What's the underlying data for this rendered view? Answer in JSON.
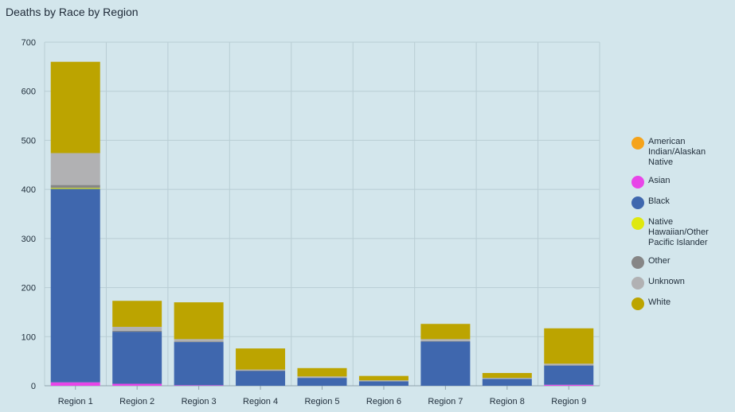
{
  "chart_data": {
    "type": "bar",
    "stacked": true,
    "title": "Deaths by Race by Region",
    "xlabel": "",
    "ylabel": "",
    "ylim": [
      0,
      700
    ],
    "yticks": [
      0,
      100,
      200,
      300,
      400,
      500,
      600,
      700
    ],
    "grid": true,
    "legend_position": "right",
    "categories": [
      "Region 1",
      "Region 2",
      "Region 3",
      "Region 4",
      "Region 5",
      "Region 6",
      "Region 7",
      "Region 8",
      "Region 9"
    ],
    "series": [
      {
        "name": "American Indian/Alaskan Native",
        "color": "#f5a31a",
        "values": [
          0,
          0,
          0,
          0,
          0,
          0,
          0,
          0,
          0
        ]
      },
      {
        "name": "Asian",
        "color": "#e845e8",
        "values": [
          7,
          4,
          1,
          0,
          0,
          0,
          0,
          0,
          2
        ]
      },
      {
        "name": "Black",
        "color": "#3f67ae",
        "values": [
          394,
          106,
          88,
          30,
          16,
          9,
          90,
          14,
          39
        ]
      },
      {
        "name": "Native Hawaiian/Other Pacific Islander",
        "color": "#dfe80f",
        "values": [
          2,
          0,
          0,
          0,
          0,
          0,
          0,
          0,
          0
        ]
      },
      {
        "name": "Other",
        "color": "#868686",
        "values": [
          6,
          2,
          1,
          1,
          0,
          0,
          1,
          0,
          1
        ]
      },
      {
        "name": "Unknown",
        "color": "#b1b1b3",
        "values": [
          65,
          8,
          5,
          2,
          3,
          2,
          4,
          2,
          3
        ]
      },
      {
        "name": "White",
        "color": "#bca400",
        "values": [
          186,
          53,
          75,
          43,
          17,
          9,
          31,
          10,
          72
        ]
      }
    ]
  }
}
